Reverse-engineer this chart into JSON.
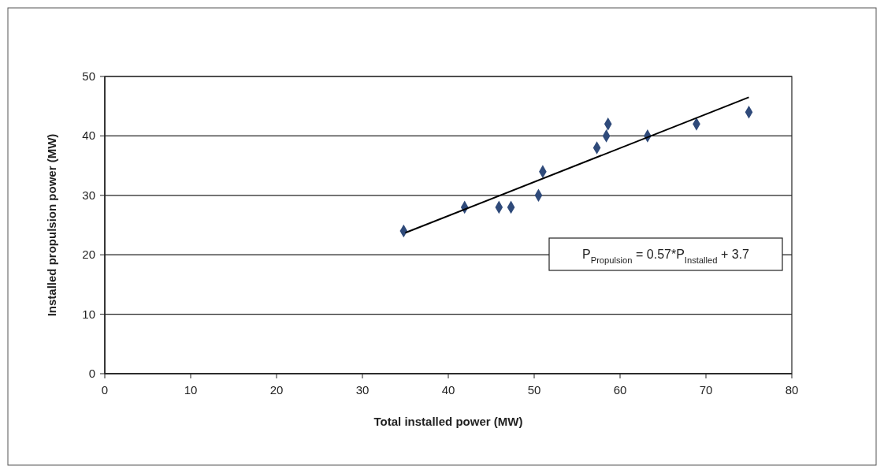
{
  "chart_data": {
    "type": "scatter",
    "xlabel": "Total installed power (MW)",
    "ylabel": "Installed propulsion power (MW)",
    "xlim": [
      0,
      80
    ],
    "ylim": [
      0,
      50
    ],
    "xticks": [
      0,
      10,
      20,
      30,
      40,
      50,
      60,
      70,
      80
    ],
    "yticks": [
      0,
      10,
      20,
      30,
      40,
      50
    ],
    "grid": "y",
    "marker": "diamond",
    "series": [
      {
        "color": "#2f4a7a",
        "x": [
          34.8,
          41.9,
          45.9,
          47.3,
          50.5,
          51,
          57.3,
          58.4,
          58.6,
          63.2,
          68.9,
          75
        ],
        "values": [
          24,
          28,
          28,
          28,
          30,
          34,
          38,
          40,
          42,
          40,
          42,
          44
        ]
      },
      {
        "type": "line",
        "marker": "none",
        "color": "#000000",
        "x": [
          35,
          75
        ],
        "values": [
          23.7,
          46.5
        ]
      }
    ],
    "annotations": [
      "P$_{Propulsion}$ = 0.57*P$_{Installed}$ + 3.7"
    ]
  }
}
